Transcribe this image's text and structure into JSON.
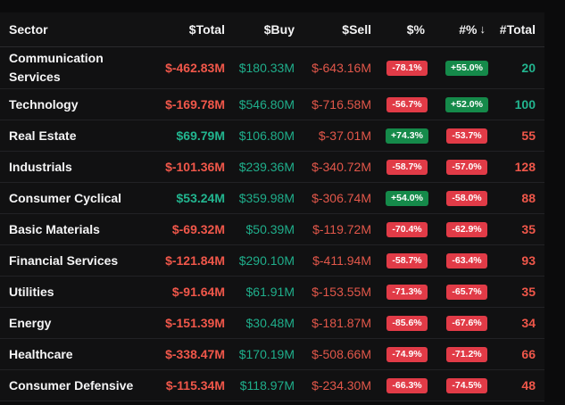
{
  "headers": {
    "sector": "Sector",
    "total": "$Total",
    "buy": "$Buy",
    "sell": "$Sell",
    "pct": "$%",
    "hash_pct": "#%",
    "sort_arrow": "↓",
    "count": "#Total"
  },
  "rows": [
    {
      "sector": "Communication Services",
      "total": "$-462.83M",
      "total_sign": "neg",
      "buy": "$180.33M",
      "sell": "$-643.16M",
      "pct": "-78.1%",
      "pct_sign": "neg",
      "hash_pct": "+55.0%",
      "hash_sign": "pos",
      "count": "20",
      "count_sign": "pos"
    },
    {
      "sector": "Technology",
      "total": "$-169.78M",
      "total_sign": "neg",
      "buy": "$546.80M",
      "sell": "$-716.58M",
      "pct": "-56.7%",
      "pct_sign": "neg",
      "hash_pct": "+52.0%",
      "hash_sign": "pos",
      "count": "100",
      "count_sign": "pos"
    },
    {
      "sector": "Real Estate",
      "total": "$69.79M",
      "total_sign": "pos",
      "buy": "$106.80M",
      "sell": "$-37.01M",
      "pct": "+74.3%",
      "pct_sign": "pos",
      "hash_pct": "-53.7%",
      "hash_sign": "neg",
      "count": "55",
      "count_sign": "neg"
    },
    {
      "sector": "Industrials",
      "total": "$-101.36M",
      "total_sign": "neg",
      "buy": "$239.36M",
      "sell": "$-340.72M",
      "pct": "-58.7%",
      "pct_sign": "neg",
      "hash_pct": "-57.0%",
      "hash_sign": "neg",
      "count": "128",
      "count_sign": "neg"
    },
    {
      "sector": "Consumer Cyclical",
      "total": "$53.24M",
      "total_sign": "pos",
      "buy": "$359.98M",
      "sell": "$-306.74M",
      "pct": "+54.0%",
      "pct_sign": "pos",
      "hash_pct": "-58.0%",
      "hash_sign": "neg",
      "count": "88",
      "count_sign": "neg"
    },
    {
      "sector": "Basic Materials",
      "total": "$-69.32M",
      "total_sign": "neg",
      "buy": "$50.39M",
      "sell": "$-119.72M",
      "pct": "-70.4%",
      "pct_sign": "neg",
      "hash_pct": "-62.9%",
      "hash_sign": "neg",
      "count": "35",
      "count_sign": "neg"
    },
    {
      "sector": "Financial Services",
      "total": "$-121.84M",
      "total_sign": "neg",
      "buy": "$290.10M",
      "sell": "$-411.94M",
      "pct": "-58.7%",
      "pct_sign": "neg",
      "hash_pct": "-63.4%",
      "hash_sign": "neg",
      "count": "93",
      "count_sign": "neg"
    },
    {
      "sector": "Utilities",
      "total": "$-91.64M",
      "total_sign": "neg",
      "buy": "$61.91M",
      "sell": "$-153.55M",
      "pct": "-71.3%",
      "pct_sign": "neg",
      "hash_pct": "-65.7%",
      "hash_sign": "neg",
      "count": "35",
      "count_sign": "neg"
    },
    {
      "sector": "Energy",
      "total": "$-151.39M",
      "total_sign": "neg",
      "buy": "$30.48M",
      "sell": "$-181.87M",
      "pct": "-85.6%",
      "pct_sign": "neg",
      "hash_pct": "-67.6%",
      "hash_sign": "neg",
      "count": "34",
      "count_sign": "neg"
    },
    {
      "sector": "Healthcare",
      "total": "$-338.47M",
      "total_sign": "neg",
      "buy": "$170.19M",
      "sell": "$-508.66M",
      "pct": "-74.9%",
      "pct_sign": "neg",
      "hash_pct": "-71.2%",
      "hash_sign": "neg",
      "count": "66",
      "count_sign": "neg"
    },
    {
      "sector": "Consumer Defensive",
      "total": "$-115.34M",
      "total_sign": "neg",
      "buy": "$118.97M",
      "sell": "$-234.30M",
      "pct": "-66.3%",
      "pct_sign": "neg",
      "hash_pct": "-74.5%",
      "hash_sign": "neg",
      "count": "48",
      "count_sign": "neg"
    }
  ],
  "colors": {
    "positive_text": "#22b58f",
    "negative_text": "#f0574a",
    "positive_badge": "#158a4a",
    "negative_badge": "#e13b47"
  }
}
